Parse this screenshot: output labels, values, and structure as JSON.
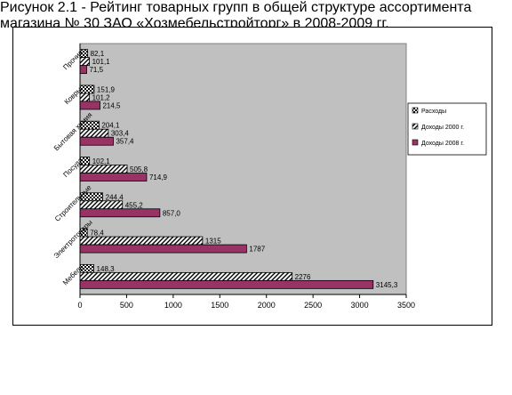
{
  "chart_data": {
    "type": "bar",
    "orientation": "horizontal",
    "categories": [
      "Мебель",
      "Электротовары",
      "Строительные",
      "Посуда",
      "Бытовая химия",
      "Ковры",
      "Прочие"
    ],
    "series": [
      {
        "name": "Расходы",
        "values": [
          148.3,
          78.4,
          244.4,
          102.1,
          204.1,
          151.9,
          82.1
        ],
        "labels": [
          "148,3",
          "78,4",
          "244,4",
          "102,1",
          "204,1",
          "151,9",
          "82,1"
        ],
        "color": "#c0c0c0",
        "pattern": "checker"
      },
      {
        "name": "Доходы 2000 г.",
        "values": [
          2276,
          1315,
          455.2,
          505.8,
          303.4,
          101.2,
          101.1
        ],
        "labels": [
          "2276",
          "1315",
          "455,2",
          "505,8",
          "303,4",
          "101,2",
          "101,1"
        ],
        "color": "#ffffff",
        "pattern": "diagonal"
      },
      {
        "name": "Доходы 2008 г.",
        "values": [
          3145.3,
          1787,
          857.0,
          714.9,
          357.4,
          214.5,
          71.5
        ],
        "labels": [
          "3145,3",
          "1787",
          "857,0",
          "714,9",
          "357,4",
          "214,5",
          "71,5"
        ],
        "color": "#993366",
        "pattern": "solid"
      }
    ],
    "xlim": [
      0,
      3500
    ],
    "xticks": [
      "0",
      "500",
      "1000",
      "1500",
      "2000",
      "2500",
      "3000",
      "3500"
    ],
    "grid": false,
    "plot_background": "#c0c0c0",
    "legend_position": "right"
  },
  "caption": {
    "line1": "Рисунок 2.1 - Рейтинг товарных групп в общей структуре ассортимента",
    "line2": "магазина № 30 ЗАО «Хозмебельстройторг» в 2008-2009 гг."
  }
}
